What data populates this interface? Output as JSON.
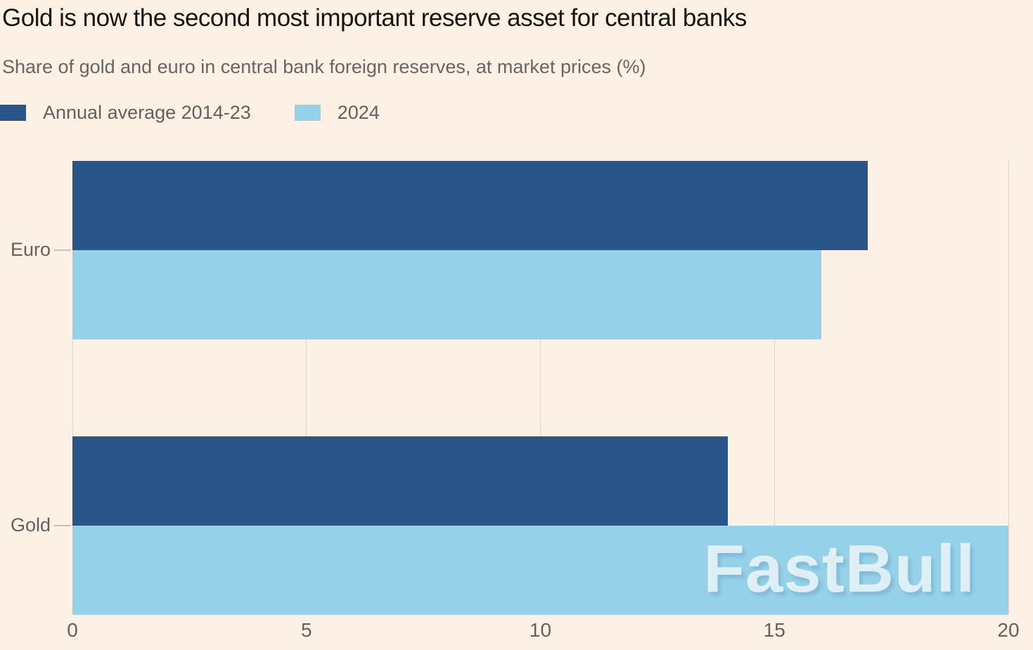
{
  "header": {
    "title": "Gold is now the second most important reserve asset for central banks",
    "subtitle": "Share of gold and euro in central bank foreign reserves, at market prices (%)"
  },
  "legend": {
    "items": [
      {
        "label": "Annual average 2014-23",
        "color": "#2a5588"
      },
      {
        "label": "2024",
        "color": "#95d2e9"
      }
    ]
  },
  "chart_data": {
    "type": "bar",
    "orientation": "horizontal",
    "title": "Gold is now the second most important reserve asset for central banks",
    "subtitle": "Share of gold and euro in central bank foreign reserves, at market prices (%)",
    "categories": [
      "Euro",
      "Gold"
    ],
    "series": [
      {
        "name": "Annual average 2014-23",
        "color": "#2a5588",
        "values": [
          17,
          14
        ]
      },
      {
        "name": "2024",
        "color": "#95d2e9",
        "values": [
          16,
          20
        ]
      }
    ],
    "xlabel": "",
    "ylabel": "",
    "xlim": [
      0,
      20
    ],
    "xticks": [
      0,
      5,
      10,
      15,
      20
    ],
    "grid": "vertical",
    "legend_position": "top-left"
  },
  "colors": {
    "background": "#fdf1e5",
    "title_text": "#181410",
    "muted_text": "#66605c",
    "series_dark_blue": "#2a5588",
    "series_light_blue": "#95d2e9"
  },
  "watermark": {
    "text": "FastBull"
  }
}
